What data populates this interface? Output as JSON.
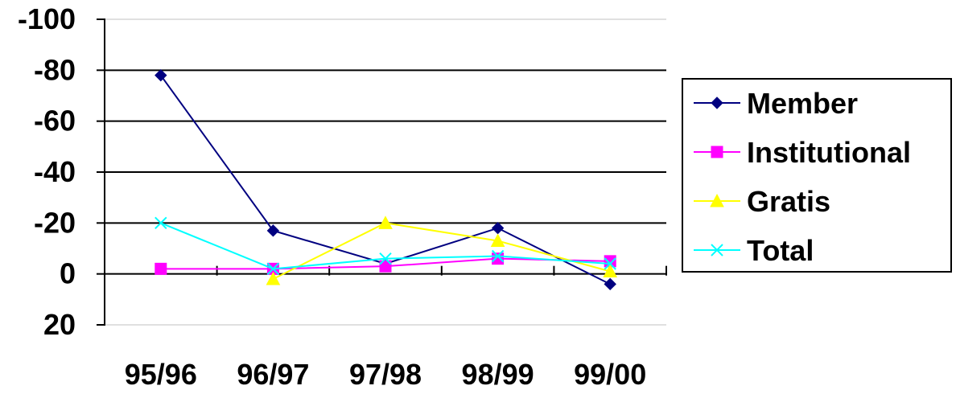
{
  "chart_data": {
    "type": "line",
    "categories": [
      "95/96",
      "96/97",
      "97/98",
      "98/99",
      "99/00"
    ],
    "series": [
      {
        "name": "Member",
        "color": "#000080",
        "marker": "diamond",
        "values": [
          -78,
          -17,
          -4,
          -18,
          4
        ]
      },
      {
        "name": "Institutional",
        "color": "#ff00ff",
        "marker": "square",
        "values": [
          -2,
          -2,
          -3,
          -6,
          -5
        ]
      },
      {
        "name": "Gratis",
        "color": "#ffff00",
        "marker": "triangle",
        "values": [
          null,
          2,
          -20,
          -13,
          -1
        ]
      },
      {
        "name": "Total",
        "color": "#00ffff",
        "marker": "x",
        "values": [
          -20,
          -2,
          -6,
          -7,
          -4
        ]
      }
    ],
    "yticks": [
      "-100",
      "-80",
      "-60",
      "-40",
      "-20",
      "0",
      "20"
    ],
    "ylim": [
      -100,
      20
    ],
    "y_reversed": true,
    "grid": true,
    "legend": "right"
  }
}
